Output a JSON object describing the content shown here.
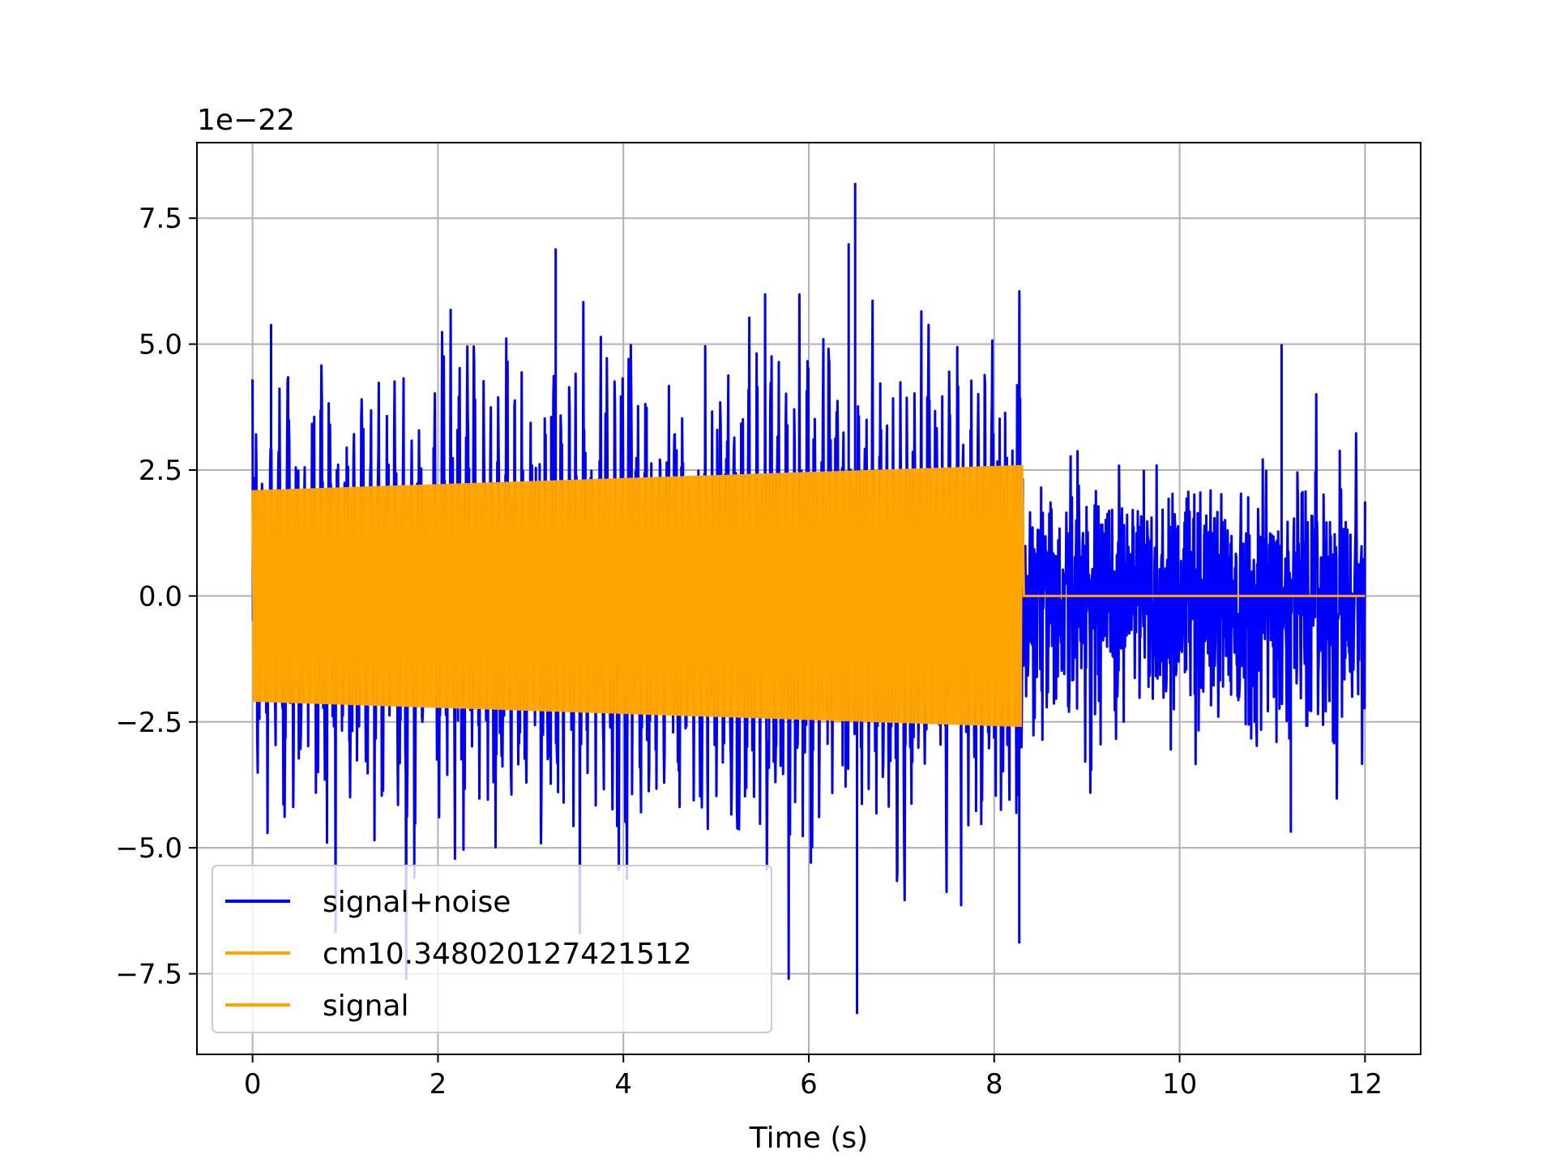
{
  "chart_data": {
    "type": "line",
    "title": "",
    "xlabel": "Time (s)",
    "ylabel": "",
    "y_offset_label": "1e−22",
    "y_scale_factor": 1e-22,
    "xlim": [
      -0.6,
      12.6
    ],
    "ylim": [
      -9.1e-22,
      9e-22
    ],
    "x_ticks": [
      0,
      2,
      4,
      6,
      8,
      10,
      12
    ],
    "x_tick_labels": [
      "0",
      "2",
      "4",
      "6",
      "8",
      "10",
      "12"
    ],
    "y_ticks": [
      -7.5e-22,
      -5e-22,
      -2.5e-22,
      0.0,
      2.5e-22,
      5e-22,
      7.5e-22
    ],
    "y_tick_labels": [
      "−7.5",
      "−5.0",
      "−2.5",
      "0.0",
      "2.5",
      "5.0",
      "7.5"
    ],
    "grid": true,
    "legend_position": "lower-left",
    "series": [
      {
        "name": "signal+noise",
        "color": "#0000ff",
        "x_start": 0.0,
        "x_end": 12.0,
        "description_of_envelope": "dense oscillation; roughly within ±4.5e-22 before ~8.3 s and ±3.5e-22 after",
        "notable_extremes": [
          {
            "x": 0.2,
            "y": 5.4e-22
          },
          {
            "x": 3.27,
            "y": 6.9e-22
          },
          {
            "x": 6.5,
            "y": 8.2e-22
          },
          {
            "x": 6.52,
            "y": -8.3e-22
          },
          {
            "x": 6.43,
            "y": 7e-22
          },
          {
            "x": 8.27,
            "y": -6.9e-22
          },
          {
            "x": 11.1,
            "y": 5e-22
          },
          {
            "x": 11.2,
            "y": -4.7e-22
          }
        ]
      },
      {
        "name": "cm10.348020127421512",
        "color": "#ffa500",
        "x_start": 0.0,
        "x_end": 12.0
      },
      {
        "name": "signal",
        "color": "#ffa500",
        "x_start": 0.0,
        "x_end": 12.0,
        "description_of_envelope": "chirp-like oscillation from 0 to ~8.3 s with amplitude growing from ~2.1e-22 to ~2.6e-22, then 0 until 12 s",
        "amplitude_at_start": 2.1e-22,
        "amplitude_at_end": 2.6e-22,
        "active_until": 8.3
      }
    ]
  }
}
